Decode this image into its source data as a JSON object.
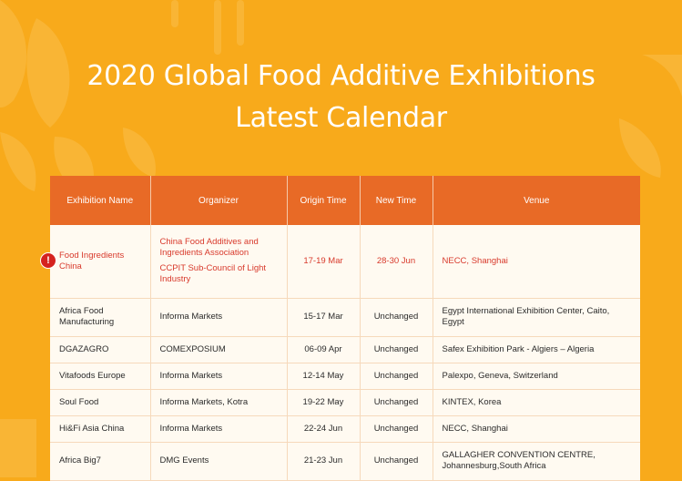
{
  "header": {
    "title_line1": "2020 Global Food Additive Exhibitions",
    "title_line2": "Latest Calendar"
  },
  "table": {
    "columns": [
      "Exhibition Name",
      "Organizer",
      "Origin Time",
      "New Time",
      "Venue"
    ],
    "rows": [
      {
        "name": "Food Ingredients China",
        "organizer": [
          "China Food Additives and Ingredients Association",
          "CCPIT Sub-Council of Light Industry"
        ],
        "origin": "17-19 Mar",
        "new": "28-30 Jun",
        "venue": "NECC, Shanghai",
        "highlighted": true
      },
      {
        "name": "Africa Food Manufacturing",
        "organizer": [
          "Informa Markets"
        ],
        "origin": "15-17 Mar",
        "new": "Unchanged",
        "venue": "Egypt International Exhibition Center, Caito, Egypt"
      },
      {
        "name": "DGAZAGRO",
        "organizer": [
          "COMEXPOSIUM"
        ],
        "origin": "06-09 Apr",
        "new": "Unchanged",
        "venue": "Safex Exhibition Park - Algiers – Algeria"
      },
      {
        "name": "Vitafoods Europe",
        "organizer": [
          "Informa Markets"
        ],
        "origin": "12-14 May",
        "new": "Unchanged",
        "venue": "Palexpo, Geneva, Switzerland"
      },
      {
        "name": "Soul Food",
        "organizer": [
          "Informa Markets, Kotra"
        ],
        "origin": "19-22 May",
        "new": "Unchanged",
        "venue": "KINTEX, Korea"
      },
      {
        "name": "Hi&Fi Asia China",
        "organizer": [
          "Informa Markets"
        ],
        "origin": "22-24 Jun",
        "new": "Unchanged",
        "venue": "NECC, Shanghai"
      },
      {
        "name": "Africa Big7",
        "organizer": [
          "DMG Events"
        ],
        "origin": "21-23 Jun",
        "new": "Unchanged",
        "venue": "GALLAGHER CONVENTION CENTRE, Johannesburg,South Africa"
      }
    ]
  },
  "alert_icon": "exclamation-icon",
  "colors": {
    "background": "#f8aa1b",
    "header": "#e86a26",
    "highlight_text": "#d83a2c",
    "alert": "#d5231f"
  }
}
